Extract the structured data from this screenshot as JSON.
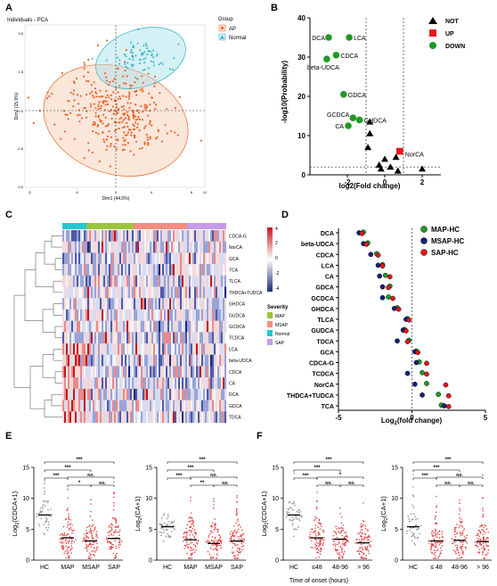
{
  "panels": {
    "A": {
      "letter": "A",
      "title": "Individuals - PCA",
      "xlabel": "Dim1 (44.5%)",
      "ylabel": "Dim2 (15.9%)",
      "legend_title": "Group",
      "groups": [
        {
          "name": "AP",
          "color": "#e8642a"
        },
        {
          "name": "Normal",
          "color": "#2ab3c6"
        }
      ],
      "xticks": [
        "-5",
        "-4",
        "0",
        "4",
        "8",
        "12"
      ],
      "yticks": [
        "3.0",
        "1.5",
        "0.0",
        "-1.5",
        "-3.0"
      ]
    },
    "B": {
      "letter": "B",
      "xlabel": "log2(Fold change)",
      "ylabel": "-log10(Probability)",
      "legend": [
        {
          "name": "NOT",
          "color": "#000000",
          "shape": "triangle"
        },
        {
          "name": "UP",
          "color": "#e8171d",
          "shape": "square"
        },
        {
          "name": "DOWN",
          "color": "#1f9a24",
          "shape": "circle"
        }
      ],
      "chart_data": {
        "type": "scatter",
        "xlim": [
          -4,
          3
        ],
        "ylim": [
          0,
          40
        ],
        "xticks": [
          -2,
          0,
          2
        ],
        "yticks": [
          0,
          10,
          20,
          30,
          40
        ],
        "thresholds": {
          "x": [
            -1,
            1
          ],
          "y": 2
        },
        "points": [
          {
            "x": -3.0,
            "y": 35,
            "group": "DOWN",
            "label": "DCA"
          },
          {
            "x": -1.9,
            "y": 35,
            "group": "DOWN",
            "label": "LCA"
          },
          {
            "x": -2.6,
            "y": 30.5,
            "group": "DOWN",
            "label": "CDCA"
          },
          {
            "x": -3.1,
            "y": 29.5,
            "group": "DOWN",
            "label": "beta-UDCA"
          },
          {
            "x": -2.2,
            "y": 20.5,
            "group": "DOWN",
            "label": "GDCA"
          },
          {
            "x": -1.7,
            "y": 14.5,
            "group": "DOWN",
            "label": "GCDCA"
          },
          {
            "x": -1.35,
            "y": 14,
            "group": "DOWN",
            "label": "GHDCA"
          },
          {
            "x": -1.95,
            "y": 12.5,
            "group": "DOWN",
            "label": "CA"
          },
          {
            "x": 0.8,
            "y": 6,
            "group": "UP",
            "label": "NorCA"
          },
          {
            "x": -0.8,
            "y": 13.5,
            "group": "NOT"
          },
          {
            "x": -0.8,
            "y": 10.5,
            "group": "NOT"
          },
          {
            "x": -0.9,
            "y": 7,
            "group": "NOT"
          },
          {
            "x": 0.0,
            "y": 4,
            "group": "NOT"
          },
          {
            "x": 0.6,
            "y": 4.5,
            "group": "NOT"
          },
          {
            "x": -0.3,
            "y": 2.5,
            "group": "NOT"
          },
          {
            "x": 0.3,
            "y": 2,
            "group": "NOT"
          },
          {
            "x": -0.2,
            "y": 1.5,
            "group": "NOT"
          },
          {
            "x": 0.7,
            "y": 1,
            "group": "NOT"
          },
          {
            "x": 2.0,
            "y": 1.5,
            "group": "NOT"
          }
        ]
      }
    },
    "C": {
      "letter": "C",
      "rows": [
        "CDCA-G",
        "NorCA",
        "GCA",
        "TCA",
        "TLCA",
        "THDCA+TUDCA",
        "GHDCA",
        "GUDCA",
        "GCDCA",
        "TCDCA",
        "LCA",
        "beta-UDCA",
        "CDCA",
        "CA",
        "DCA",
        "GDCA",
        "TDCA"
      ],
      "scale_ticks": [
        "4",
        "2",
        "0",
        "-2",
        "-4"
      ],
      "severity_title": "Severity",
      "severity": [
        {
          "name": "MAP",
          "color": "#9ac53e"
        },
        {
          "name": "MSAP",
          "color": "#f48c82"
        },
        {
          "name": "Normal",
          "color": "#25c6cf"
        },
        {
          "name": "SAP",
          "color": "#c79be8"
        }
      ]
    },
    "D": {
      "letter": "D",
      "xlabel_pre": "Log",
      "xlabel_sub": "2",
      "xlabel_post": "(fold change)",
      "legend": [
        {
          "name": "MAP-HC",
          "color": "#1f9a24"
        },
        {
          "name": "MSAP-HC",
          "color": "#15227a"
        },
        {
          "name": "SAP-HC",
          "color": "#e8171d"
        }
      ],
      "chart_data": {
        "type": "scatter",
        "xlim": [
          -5,
          5
        ],
        "xticks": [
          -5,
          0,
          5
        ],
        "categories": [
          "DCA",
          "beta-UDCA",
          "CDCA",
          "LCA",
          "CA",
          "GDCA",
          "GCDCA",
          "GHDCA",
          "TLCA",
          "GUDCA",
          "TDCA",
          "GCA",
          "CDCA-G",
          "TCDCA",
          "NorCA",
          "THDCA+TUDCA",
          "TCA"
        ],
        "series": [
          {
            "name": "MAP-HC",
            "values": [
              -3.3,
              -3.0,
              -2.4,
              -2.0,
              -1.8,
              -1.5,
              -1.6,
              -1.0,
              -0.3,
              -0.5,
              -0.2,
              0.3,
              0.5,
              0.7,
              1.0,
              1.8,
              2.0
            ]
          },
          {
            "name": "MSAP-HC",
            "values": [
              -3.6,
              -3.3,
              -2.8,
              -2.3,
              -2.2,
              -2.0,
              -2.0,
              -1.2,
              -0.4,
              -0.6,
              -1.0,
              0.2,
              0.3,
              -0.3,
              0.2,
              0.7,
              2.2
            ]
          },
          {
            "name": "SAP-HC",
            "values": [
              -3.4,
              -3.1,
              -2.3,
              -2.0,
              -1.5,
              -1.6,
              -1.3,
              -0.9,
              -0.2,
              -0.4,
              -0.3,
              0.4,
              1.0,
              1.0,
              2.3,
              2.5,
              2.5
            ]
          }
        ]
      }
    },
    "E": {
      "letter": "E",
      "plots": [
        {
          "ylabel_pre": "Log",
          "ylabel_sub": "2",
          "ylabel_post": "(CDCA+1)",
          "yticks": [
            "0",
            "5",
            "10",
            "15"
          ],
          "categories": [
            "HC",
            "MAP",
            "MSAP",
            "SAP"
          ],
          "medians": [
            7.3,
            3.6,
            3.1,
            3.5
          ],
          "sig": [
            {
              "from": 0,
              "to": 1,
              "text": "***"
            },
            {
              "from": 0,
              "to": 2,
              "text": "***"
            },
            {
              "from": 0,
              "to": 3,
              "text": "***"
            },
            {
              "from": 1,
              "to": 2,
              "text": "*"
            },
            {
              "from": 2,
              "to": 3,
              "text": "NS."
            },
            {
              "from": 1,
              "to": 3,
              "text": "NS."
            }
          ]
        },
        {
          "ylabel_pre": "Log",
          "ylabel_sub": "2",
          "ylabel_post": "(CA+1)",
          "yticks": [
            "0",
            "5",
            "10",
            "15"
          ],
          "categories": [
            "HC",
            "MAP",
            "MSAP",
            "SAP"
          ],
          "medians": [
            5.4,
            3.3,
            2.7,
            3.1
          ],
          "sig": [
            {
              "from": 0,
              "to": 1,
              "text": "***"
            },
            {
              "from": 0,
              "to": 2,
              "text": "***"
            },
            {
              "from": 0,
              "to": 3,
              "text": "***"
            },
            {
              "from": 1,
              "to": 2,
              "text": "**"
            },
            {
              "from": 2,
              "to": 3,
              "text": "NS."
            },
            {
              "from": 1,
              "to": 3,
              "text": "NS."
            }
          ]
        }
      ]
    },
    "F": {
      "letter": "F",
      "xlabel": "Time of onset (hours)",
      "plots": [
        {
          "ylabel_pre": "Log",
          "ylabel_sub": "2",
          "ylabel_post": "(CDCA+1)",
          "yticks": [
            "0",
            "5",
            "10",
            "15"
          ],
          "categories": [
            "HC",
            "≤48",
            "48-96",
            "> 96"
          ],
          "medians": [
            7.3,
            3.6,
            3.4,
            2.8
          ],
          "sig": [
            {
              "from": 0,
              "to": 1,
              "text": "***"
            },
            {
              "from": 0,
              "to": 2,
              "text": "***"
            },
            {
              "from": 0,
              "to": 3,
              "text": "***"
            },
            {
              "from": 1,
              "to": 2,
              "text": "NS."
            },
            {
              "from": 2,
              "to": 3,
              "text": "NS."
            },
            {
              "from": 1,
              "to": 3,
              "text": "*"
            }
          ]
        },
        {
          "ylabel_pre": "Log",
          "ylabel_sub": "2",
          "ylabel_post": "(CA+1)",
          "yticks": [
            "0",
            "5",
            "10",
            "15"
          ],
          "categories": [
            "HC",
            "≤ 48",
            "48-96",
            "> 96"
          ],
          "medians": [
            5.4,
            3.1,
            3.2,
            3.0
          ],
          "sig": [
            {
              "from": 0,
              "to": 1,
              "text": "***"
            },
            {
              "from": 0,
              "to": 2,
              "text": "***"
            },
            {
              "from": 0,
              "to": 3,
              "text": "***"
            },
            {
              "from": 1,
              "to": 2,
              "text": "NS."
            },
            {
              "from": 2,
              "to": 3,
              "text": "NS."
            },
            {
              "from": 1,
              "to": 3,
              "text": "NS."
            }
          ]
        }
      ]
    }
  }
}
